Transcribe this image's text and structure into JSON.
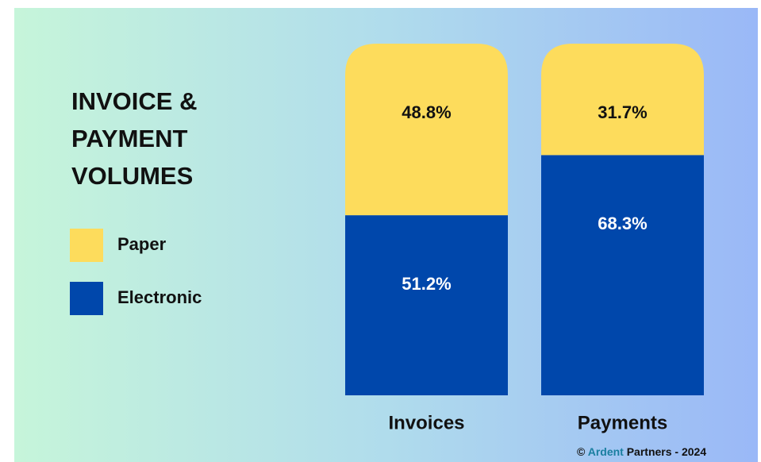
{
  "chart_data": {
    "type": "stacked_bar",
    "title": "INVOICE & PAYMENT VOLUMES",
    "categories": [
      "Invoices",
      "Payments"
    ],
    "series": [
      {
        "name": "Paper",
        "color": "#fddc5c",
        "values": [
          48.8,
          31.7
        ],
        "value_labels": [
          "48.8%",
          "31.7%"
        ]
      },
      {
        "name": "Electronic",
        "color": "#0047ab",
        "values": [
          51.2,
          68.3
        ],
        "value_labels": [
          "51.2%",
          "68.3%"
        ]
      }
    ],
    "footer": {
      "prefix": "©",
      "brand": "Ardent",
      "suffix": "Partners - 2024"
    }
  }
}
